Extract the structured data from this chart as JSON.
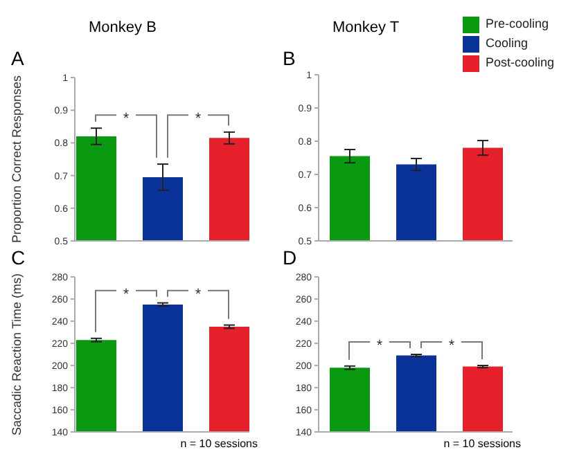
{
  "chart_data": [
    {
      "type": "bar",
      "title": "Monkey B",
      "ylabel": "Proportion Correct Responses",
      "categories": [
        null
      ],
      "series": [
        {
          "color": "#0a9a12",
          "values": [
            0.82
          ],
          "errors": [
            0.025
          ]
        },
        {
          "color": "#0a3399",
          "values": [
            0.695
          ],
          "errors": [
            0.04
          ]
        },
        {
          "color": "#e5202a",
          "values": [
            0.815
          ],
          "errors": [
            0.018
          ]
        }
      ],
      "ylim": [
        0.5,
        1
      ],
      "yticks": [
        0.5,
        0.6,
        0.7,
        0.8,
        0.9,
        1
      ],
      "grid": false,
      "legend": false,
      "annotations": [
        "A",
        "*",
        "*"
      ]
    },
    {
      "type": "bar",
      "title": "Monkey T",
      "categories": [
        null
      ],
      "series": [
        {
          "name": "Pre-cooling",
          "color": "#0a9a12",
          "values": [
            0.755
          ],
          "errors": [
            0.02
          ]
        },
        {
          "name": "Cooling",
          "color": "#0a3399",
          "values": [
            0.73
          ],
          "errors": [
            0.018
          ]
        },
        {
          "name": "Post-cooling",
          "color": "#e5202a",
          "values": [
            0.78
          ],
          "errors": [
            0.022
          ]
        }
      ],
      "ylim": [
        0.5,
        1
      ],
      "yticks": [
        0.5,
        0.6,
        0.7,
        0.8,
        0.9,
        1
      ],
      "grid": false,
      "legend": "top right",
      "annotations": [
        "B"
      ]
    },
    {
      "type": "bar",
      "ylabel": "Saccadic Reaction Time (ms)",
      "categories": [
        null
      ],
      "series": [
        {
          "color": "#0a9a12",
          "values": [
            223
          ],
          "errors": [
            1.5
          ]
        },
        {
          "color": "#0a3399",
          "values": [
            255
          ],
          "errors": [
            1.5
          ]
        },
        {
          "color": "#e5202a",
          "values": [
            235
          ],
          "errors": [
            1.5
          ]
        }
      ],
      "ylim": [
        140,
        280
      ],
      "yticks": [
        140,
        160,
        180,
        200,
        220,
        240,
        260,
        280
      ],
      "grid": false,
      "legend": false,
      "annotations": [
        "C",
        "*",
        "*",
        "n = 10 sessions"
      ]
    },
    {
      "type": "bar",
      "categories": [
        null
      ],
      "series": [
        {
          "color": "#0a9a12",
          "values": [
            198
          ],
          "errors": [
            1.5
          ]
        },
        {
          "color": "#0a3399",
          "values": [
            209
          ],
          "errors": [
            1
          ]
        },
        {
          "color": "#e5202a",
          "values": [
            199
          ],
          "errors": [
            1
          ]
        }
      ],
      "ylim": [
        140,
        280
      ],
      "yticks": [
        140,
        160,
        180,
        200,
        220,
        240,
        260,
        280
      ],
      "grid": false,
      "legend": false,
      "annotations": [
        "D",
        "*",
        "*",
        "n = 10 sessions"
      ]
    }
  ]
}
